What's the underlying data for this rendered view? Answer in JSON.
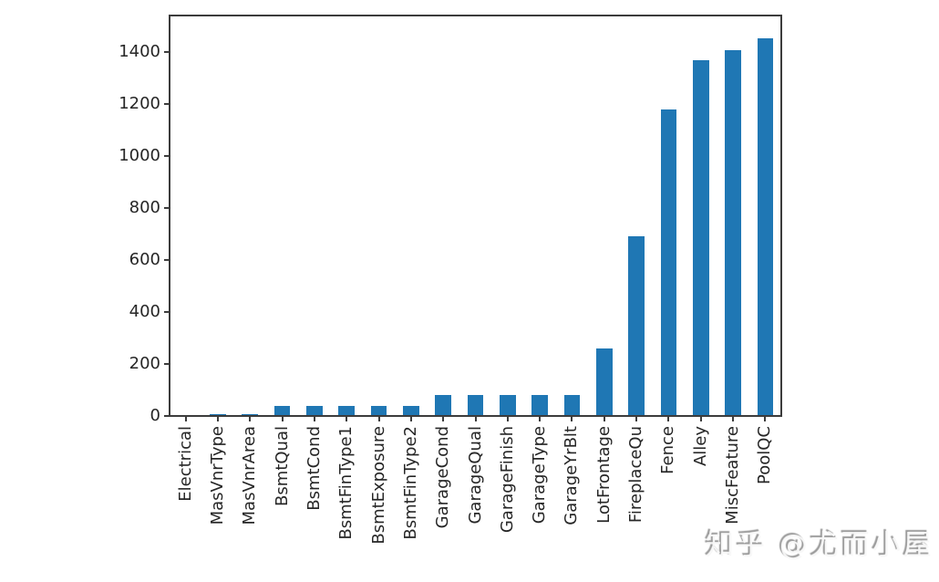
{
  "chart_data": {
    "type": "bar",
    "title": "",
    "xlabel": "",
    "ylabel": "",
    "categories": [
      "Electrical",
      "MasVnrType",
      "MasVnrArea",
      "BsmtQual",
      "BsmtCond",
      "BsmtFinType1",
      "BsmtExposure",
      "BsmtFinType2",
      "GarageCond",
      "GarageQual",
      "GarageFinish",
      "GarageType",
      "GarageYrBlt",
      "LotFrontage",
      "FireplaceQu",
      "Fence",
      "Alley",
      "MiscFeature",
      "PoolQC"
    ],
    "values": [
      1,
      8,
      8,
      37,
      37,
      37,
      38,
      38,
      81,
      81,
      81,
      81,
      81,
      259,
      690,
      1179,
      1369,
      1406,
      1453
    ],
    "yticks": [
      0,
      200,
      400,
      600,
      800,
      1000,
      1200,
      1400
    ],
    "ylim": [
      0,
      1540
    ],
    "grid": false,
    "legend": null,
    "bar_color": "#1f77b4",
    "axis_color": "#3c3c3c",
    "tick_label_color": "#262626"
  },
  "watermark": {
    "text": "知乎 @尤而小屋"
  }
}
